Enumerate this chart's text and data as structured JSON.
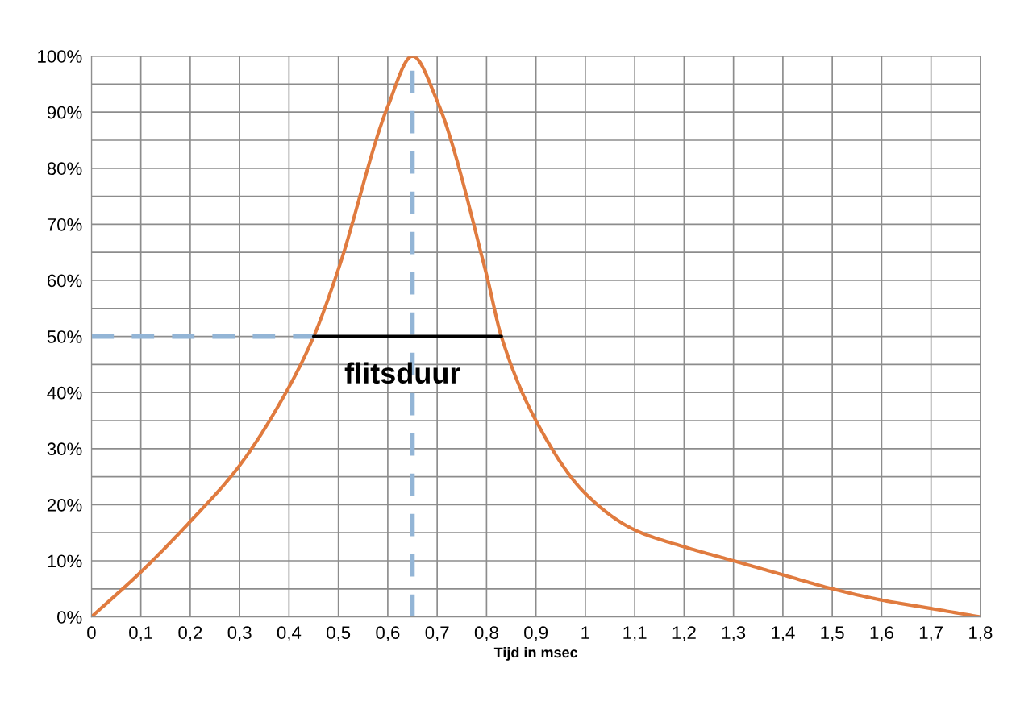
{
  "chart_data": {
    "type": "line",
    "xlabel": "Tijd in msec",
    "x": [
      0,
      0.1,
      0.2,
      0.3,
      0.4,
      0.45,
      0.5,
      0.6,
      0.65,
      0.7,
      0.8,
      0.83,
      0.9,
      1.0,
      1.1,
      1.2,
      1.3,
      1.4,
      1.5,
      1.6,
      1.7,
      1.8
    ],
    "series": [
      {
        "color": "#e07b3f",
        "values": [
          0,
          8,
          17,
          27,
          41,
          50,
          62,
          91,
          100,
          92,
          61,
          50,
          35,
          22,
          15.5,
          12.5,
          10,
          7.5,
          5,
          3,
          1.5,
          0
        ]
      },
      {
        "color": "#93b5d6",
        "line_style": "dashed",
        "x": [
          0,
          0.45
        ],
        "values": [
          50,
          50
        ]
      },
      {
        "color": "#93b5d6",
        "line_style": "dashed",
        "x": [
          0.65,
          0.65
        ],
        "values": [
          0,
          100
        ]
      },
      {
        "color": "#000000",
        "x": [
          0.45,
          0.83
        ],
        "values": [
          50,
          50
        ]
      }
    ],
    "annotations": [
      "flitsduur"
    ],
    "xlim": [
      0,
      1.8
    ],
    "xticks": [
      {
        "value": 0,
        "label": "0"
      },
      {
        "value": 0.1,
        "label": "0,1"
      },
      {
        "value": 0.2,
        "label": "0,2"
      },
      {
        "value": 0.3,
        "label": "0,3"
      },
      {
        "value": 0.4,
        "label": "0,4"
      },
      {
        "value": 0.5,
        "label": "0,5"
      },
      {
        "value": 0.6,
        "label": "0,6"
      },
      {
        "value": 0.7,
        "label": "0,7"
      },
      {
        "value": 0.8,
        "label": "0,8"
      },
      {
        "value": 0.9,
        "label": "0,9"
      },
      {
        "value": 1.0,
        "label": "1"
      },
      {
        "value": 1.1,
        "label": "1,1"
      },
      {
        "value": 1.2,
        "label": "1,2"
      },
      {
        "value": 1.3,
        "label": "1,3"
      },
      {
        "value": 1.4,
        "label": "1,4"
      },
      {
        "value": 1.5,
        "label": "1,5"
      },
      {
        "value": 1.6,
        "label": "1,6"
      },
      {
        "value": 1.7,
        "label": "1,7"
      },
      {
        "value": 1.8,
        "label": "1,8"
      }
    ],
    "ylim": [
      0,
      100
    ],
    "yticks": [
      {
        "value": 0,
        "label": "0%"
      },
      {
        "value": 5,
        "label": null
      },
      {
        "value": 10,
        "label": "10%"
      },
      {
        "value": 15,
        "label": null
      },
      {
        "value": 20,
        "label": "20%"
      },
      {
        "value": 25,
        "label": null
      },
      {
        "value": 30,
        "label": "30%"
      },
      {
        "value": 35,
        "label": null
      },
      {
        "value": 40,
        "label": "40%"
      },
      {
        "value": 45,
        "label": null
      },
      {
        "value": 50,
        "label": "50%"
      },
      {
        "value": 55,
        "label": null
      },
      {
        "value": 60,
        "label": "60%"
      },
      {
        "value": 65,
        "label": null
      },
      {
        "value": 70,
        "label": "70%"
      },
      {
        "value": 75,
        "label": null
      },
      {
        "value": 80,
        "label": "80%"
      },
      {
        "value": 85,
        "label": null
      },
      {
        "value": 90,
        "label": "90%"
      },
      {
        "value": 95,
        "label": null
      },
      {
        "value": 100,
        "label": "100%"
      }
    ],
    "grid": true
  }
}
